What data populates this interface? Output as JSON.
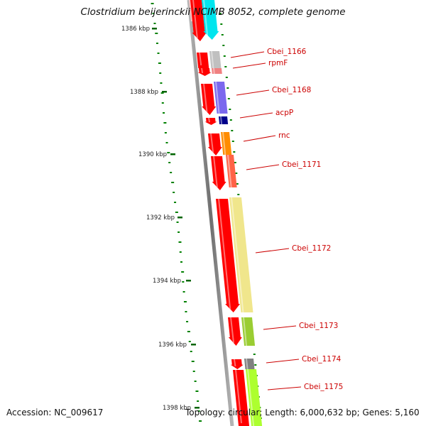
{
  "title": "Clostridium beijerinckii NCIMB 8052, complete genome",
  "footer": {
    "accession": "Accession: NC_009617",
    "summary": "Topology: circular; Length: 6,000,632 bp; Genes: 5,160"
  },
  "axis": {
    "ticks": [
      "1386 kbp",
      "1388 kbp",
      "1390 kbp",
      "1392 kbp",
      "1394 kbp",
      "1396 kbp",
      "1398 kbp"
    ]
  },
  "genes": [
    {
      "label": "Cbei_1166",
      "color": "#c0c0c0"
    },
    {
      "label": "rpmF",
      "color": "#f08080"
    },
    {
      "label": "Cbei_1168",
      "color": "#7b68ee"
    },
    {
      "label": "acpP",
      "color": "#00008b"
    },
    {
      "label": "rnc",
      "color": "#ff8c00"
    },
    {
      "label": "Cbei_1171",
      "color": "#ff6347"
    },
    {
      "label": "Cbei_1172",
      "color": "#f0e68c"
    },
    {
      "label": "Cbei_1173",
      "color": "#9acd32"
    },
    {
      "label": "Cbei_1174",
      "color": "#808080"
    },
    {
      "label": "Cbei_1175",
      "color": "#adff2f"
    }
  ],
  "colors": {
    "cds_track": "#ff0000",
    "label_text": "#cc0000",
    "gc_skew_dashes": "#008000",
    "backbone": "#808080"
  }
}
